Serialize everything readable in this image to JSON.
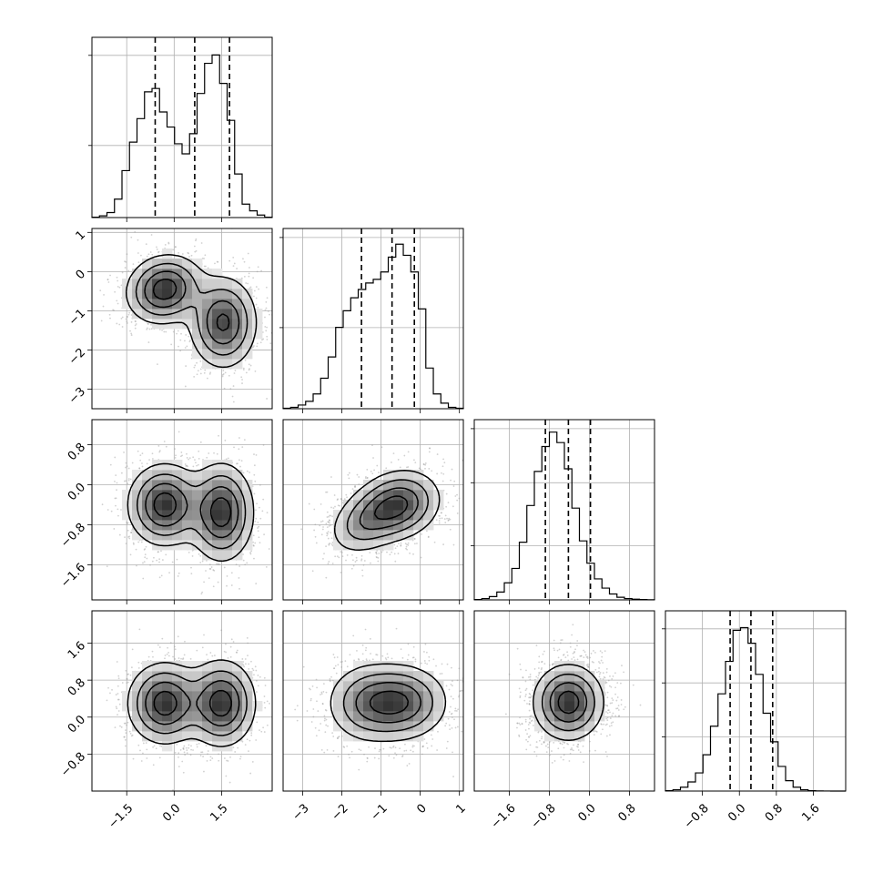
{
  "chart_data": {
    "type": "corner",
    "title": "",
    "parameters": [
      {
        "index": 0,
        "range": [
          -2.6,
          3.1
        ],
        "ticks": [
          -1.5,
          0.0,
          1.5
        ],
        "tick_labels": [
          "−1.5",
          "0.0",
          "1.5"
        ],
        "quantiles": [
          -0.6,
          0.65,
          1.75
        ],
        "hist_edges_start": -2.6,
        "hist_bin_width": 0.2375,
        "hist_counts": [
          5,
          20,
          60,
          220,
          560,
          900,
          1180,
          1500,
          1540,
          1260,
          1080,
          880,
          760,
          1000,
          1480,
          1840,
          1940,
          1600,
          1160,
          520,
          160,
          80,
          30,
          5
        ],
        "hist_ylim": [
          0,
          2150
        ],
        "hist_grid": [
          0.4,
          0.9
        ]
      },
      {
        "index": 1,
        "range": [
          -3.5,
          1.1
        ],
        "ticks": [
          -3,
          -2,
          -1,
          0,
          1
        ],
        "tick_labels": [
          "−3",
          "−2",
          "−1",
          "0",
          "1"
        ],
        "quantiles": [
          -1.5,
          -0.72,
          -0.15
        ],
        "hist_edges_start": -3.5,
        "hist_bin_width": 0.1917,
        "hist_counts": [
          5,
          15,
          40,
          80,
          160,
          330,
          560,
          880,
          1060,
          1200,
          1290,
          1360,
          1400,
          1480,
          1640,
          1780,
          1660,
          1480,
          1080,
          440,
          160,
          60,
          15,
          5
        ],
        "hist_ylim": [
          0,
          1950
        ],
        "hist_grid": [
          0.45,
          0.95
        ]
      },
      {
        "index": 2,
        "range": [
          -2.3,
          1.3
        ],
        "ticks": [
          -1.6,
          -0.8,
          0.0,
          0.8
        ],
        "tick_labels": [
          "−1.6",
          "−0.8",
          "0.0",
          "0.8"
        ],
        "quantiles": [
          -0.88,
          -0.42,
          0.02
        ],
        "hist_edges_start": -2.3,
        "hist_bin_width": 0.15,
        "hist_counts": [
          5,
          20,
          50,
          120,
          260,
          480,
          880,
          1440,
          1960,
          2340,
          2560,
          2400,
          2000,
          1400,
          900,
          560,
          320,
          180,
          90,
          40,
          20,
          10,
          5,
          2
        ],
        "hist_ylim": [
          0,
          2750
        ],
        "hist_grid": [
          0.3,
          0.65,
          0.95
        ]
      },
      {
        "index": 3,
        "range": [
          -1.6,
          2.3
        ],
        "ticks": [
          -0.8,
          0.0,
          0.8,
          1.6
        ],
        "tick_labels": [
          "−0.8",
          "0.0",
          "0.8",
          "1.6"
        ],
        "quantiles": [
          -0.2,
          0.25,
          0.72
        ],
        "hist_edges_start": -1.6,
        "hist_bin_width": 0.1625,
        "hist_counts": [
          5,
          20,
          60,
          140,
          280,
          560,
          1000,
          1500,
          2000,
          2480,
          2520,
          2280,
          1800,
          1200,
          760,
          380,
          160,
          60,
          20,
          5,
          2,
          1,
          0,
          0
        ],
        "hist_ylim": [
          0,
          2780
        ],
        "hist_grid": [
          0.3,
          0.6,
          0.9
        ]
      }
    ],
    "pairs": [
      {
        "x_param": 0,
        "y_param": 1,
        "blobs": [
          {
            "cx": -0.3,
            "cy": -0.45,
            "sx": 0.62,
            "sy": 0.45,
            "rho": 0.1,
            "peak": 1.0
          },
          {
            "cx": 1.55,
            "cy": -1.3,
            "sx": 0.55,
            "sy": 0.6,
            "rho": 0.0,
            "peak": 0.9
          }
        ],
        "contour_levels": [
          0.15,
          0.35,
          0.6,
          0.85
        ]
      },
      {
        "x_param": 0,
        "y_param": 2,
        "blobs": [
          {
            "cx": -0.3,
            "cy": -0.4,
            "sx": 0.6,
            "sy": 0.42,
            "rho": 0.0,
            "peak": 1.0
          },
          {
            "cx": 1.5,
            "cy": -0.55,
            "sx": 0.52,
            "sy": 0.5,
            "rho": 0.0,
            "peak": 1.0
          }
        ],
        "contour_levels": [
          0.15,
          0.35,
          0.6,
          0.85
        ]
      },
      {
        "x_param": 1,
        "y_param": 2,
        "blobs": [
          {
            "cx": -0.55,
            "cy": -0.4,
            "sx": 0.55,
            "sy": 0.36,
            "rho": 0.15,
            "peak": 1.0
          },
          {
            "cx": -1.4,
            "cy": -0.75,
            "sx": 0.5,
            "sy": 0.35,
            "rho": 0.3,
            "peak": 0.55
          }
        ],
        "contour_levels": [
          0.15,
          0.35,
          0.6,
          0.85
        ]
      },
      {
        "x_param": 0,
        "y_param": 3,
        "blobs": [
          {
            "cx": -0.3,
            "cy": 0.3,
            "sx": 0.6,
            "sy": 0.45,
            "rho": 0.0,
            "peak": 1.0
          },
          {
            "cx": 1.5,
            "cy": 0.3,
            "sx": 0.55,
            "sy": 0.48,
            "rho": 0.0,
            "peak": 1.0
          }
        ],
        "contour_levels": [
          0.15,
          0.35,
          0.6,
          0.85
        ]
      },
      {
        "x_param": 1,
        "y_param": 3,
        "blobs": [
          {
            "cx": -0.5,
            "cy": 0.32,
            "sx": 0.62,
            "sy": 0.42,
            "rho": 0.0,
            "peak": 1.0
          },
          {
            "cx": -1.4,
            "cy": 0.3,
            "sx": 0.55,
            "sy": 0.45,
            "rho": 0.0,
            "peak": 0.6
          }
        ],
        "contour_levels": [
          0.15,
          0.35,
          0.6,
          0.85
        ]
      },
      {
        "x_param": 2,
        "y_param": 3,
        "blobs": [
          {
            "cx": -0.42,
            "cy": 0.32,
            "sx": 0.36,
            "sy": 0.42,
            "rho": 0.0,
            "peak": 1.0
          }
        ],
        "contour_levels": [
          0.15,
          0.35,
          0.6,
          0.85
        ]
      }
    ],
    "colors": {
      "ink": "#000000",
      "grid": "#b0b0b0",
      "density_max": "#333333",
      "scatter": "#9a9a9a"
    },
    "legend": "none",
    "grid": true
  }
}
